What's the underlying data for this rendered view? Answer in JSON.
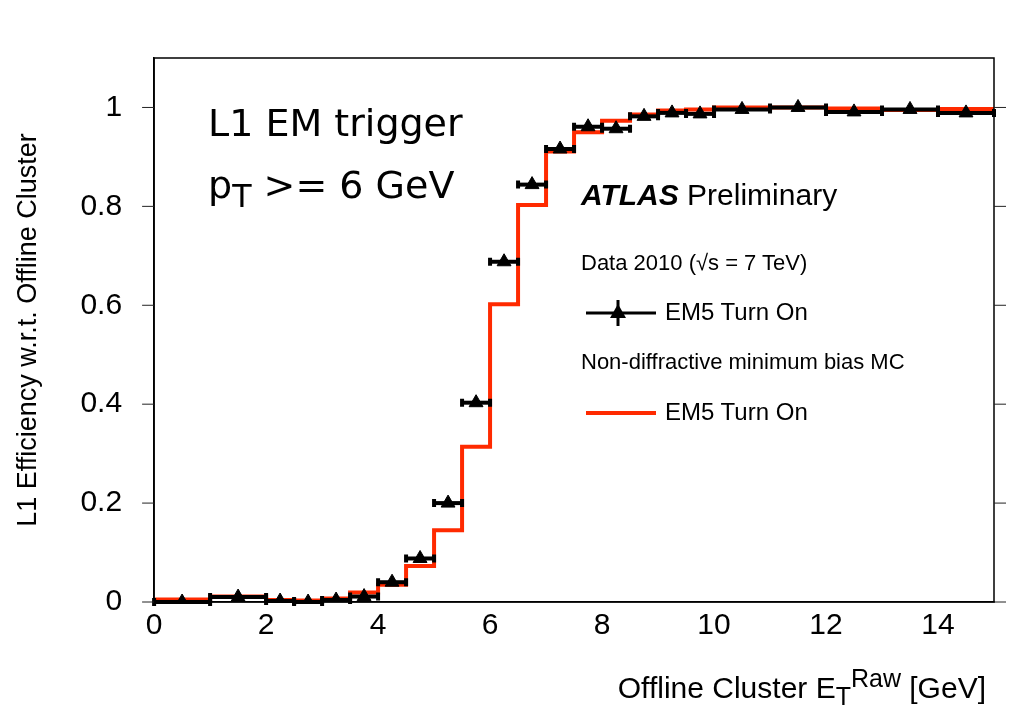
{
  "chart_data": {
    "type": "scatter",
    "xlabel": "Offline Cluster E$_{T}$$^{Raw}$ [GeV]",
    "ylabel": "L1 Efficiency w.r.t. Offline Cluster",
    "xlim": [
      0,
      15
    ],
    "xticks": [
      0,
      2,
      4,
      6,
      8,
      10,
      12,
      14
    ],
    "ylim": [
      0,
      1.1
    ],
    "yticks": [
      0,
      0.2,
      0.4,
      0.6,
      0.8,
      1
    ],
    "grid": false,
    "legend": "right",
    "marker": "triangle",
    "annotations": [
      "L1 EM trigger",
      "p$_{T}$ >= 6 GeV",
      "ATLAS Preliminary",
      "Data 2010 (√s = 7 TeV)",
      "Non-diffractive minimum bias MC"
    ],
    "series": [
      {
        "name": "EM5 Turn On",
        "color": "#000000",
        "x": [
          0.5,
          1.5,
          2.25,
          2.75,
          3.25,
          3.75,
          4.25,
          4.75,
          5.25,
          5.75,
          6.25,
          6.75,
          7.25,
          7.75,
          8.25,
          8.75,
          9.25,
          9.75,
          10.5,
          11.5,
          12.5,
          13.5,
          14.5
        ],
        "values": [
          0.0,
          0.01,
          0.002,
          0.0,
          0.004,
          0.011,
          0.04,
          0.088,
          0.2,
          0.403,
          0.688,
          0.844,
          0.916,
          0.961,
          0.957,
          0.982,
          0.989,
          0.987,
          0.996,
          1.0,
          0.991,
          0.996,
          0.989
        ],
        "xerrors": [
          0.5,
          0.5,
          0.25,
          0.25,
          0.25,
          0.25,
          0.25,
          0.25,
          0.25,
          0.25,
          0.25,
          0.25,
          0.25,
          0.25,
          0.25,
          0.25,
          0.25,
          0.25,
          0.5,
          0.5,
          0.5,
          0.5,
          0.5
        ]
      },
      {
        "name": "EM5 Turn On",
        "type": "histogram",
        "color": "#ff2a00",
        "bins": [
          0,
          1,
          2,
          2.5,
          3,
          3.5,
          4,
          4.5,
          5,
          5.5,
          6,
          6.5,
          7,
          7.5,
          8,
          8.5,
          9,
          9.5,
          10,
          11,
          12,
          13,
          14,
          15
        ],
        "values": [
          0.005,
          0.011,
          0.004,
          0.003,
          0.007,
          0.019,
          0.035,
          0.073,
          0.145,
          0.314,
          0.602,
          0.803,
          0.911,
          0.95,
          0.973,
          0.986,
          0.994,
          0.996,
          1.0,
          1.0,
          0.998,
          0.995,
          0.997
        ]
      }
    ]
  }
}
